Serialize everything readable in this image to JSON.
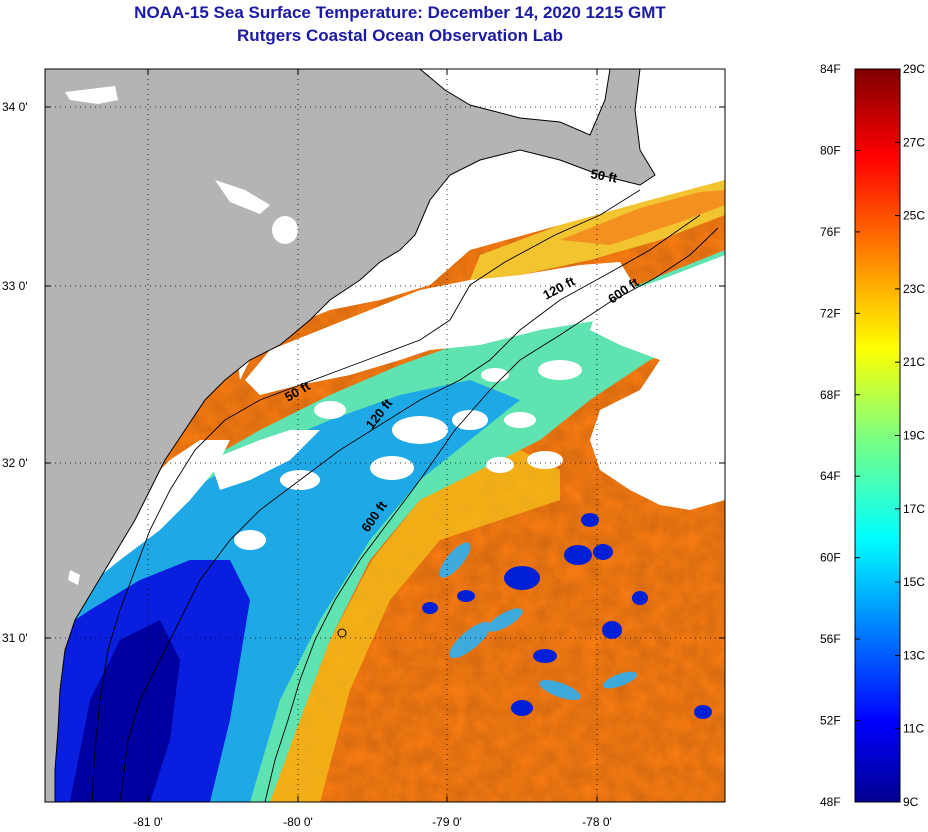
{
  "title": {
    "line1": "NOAA-15 Sea Surface Temperature:  December 14, 2020 1215 GMT",
    "line2": "Rutgers Coastal Ocean Observation Lab"
  },
  "map": {
    "lat_ticks": [
      "34 0'",
      "33 0'",
      "32 0'",
      "31 0'"
    ],
    "lon_ticks": [
      "-81 0'",
      "-80 0'",
      "-79 0'",
      "-78 0'"
    ],
    "contours": [
      "50 ft",
      "120 ft",
      "600 ft",
      "50 ft",
      "120 ft",
      "600 ft"
    ],
    "colors": {
      "land": "#b4b4b4",
      "cloud": "#ffffff",
      "title": "#1a1aa6"
    }
  },
  "colorbar": {
    "fahrenheit": [
      "84F",
      "80F",
      "76F",
      "72F",
      "68F",
      "64F",
      "60F",
      "56F",
      "52F",
      "48F"
    ],
    "celsius": [
      "29C",
      "27C",
      "25C",
      "23C",
      "21C",
      "19C",
      "17C",
      "15C",
      "13C",
      "11C",
      "9C"
    ],
    "scale": "jet"
  }
}
